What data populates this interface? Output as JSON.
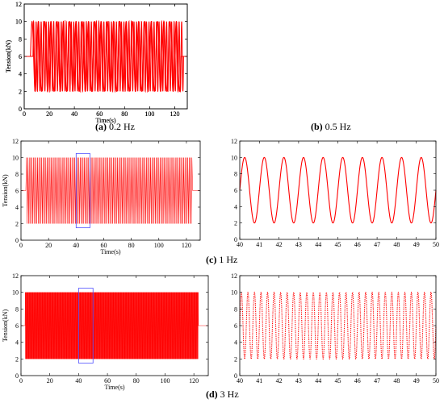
{
  "captions": {
    "a": {
      "letter": "(a)",
      "text": " 0.2 Hz"
    },
    "b": {
      "letter": "(b)",
      "text": " 0.5 Hz"
    },
    "c": {
      "letter": "(c)",
      "text": " 1 Hz"
    },
    "d": {
      "letter": "(d)",
      "text": " 3 Hz"
    }
  },
  "colors": {
    "signal": "#ff0000",
    "box": "#5050ff",
    "axis": "#000000"
  },
  "chart_data": [
    {
      "id": "a",
      "type": "line",
      "xlabel": "Time(s)",
      "ylabel": "Tension(kN)",
      "xlim": [
        0,
        130
      ],
      "ylim": [
        0,
        12
      ],
      "xticks": [
        0,
        20,
        40,
        60,
        80,
        100,
        120
      ],
      "yticks": [
        0,
        2,
        4,
        6,
        8,
        10,
        12
      ],
      "series": [
        {
          "freq_hz": 0.2,
          "start_s": 5,
          "end_s": 125,
          "baseline_kN": 6,
          "max_kN": 10,
          "min_kN": 2
        }
      ]
    },
    {
      "id": "b",
      "type": "line",
      "xlabel": "Time(s)",
      "ylabel": "Tension(kN)",
      "xlim": [
        0,
        130
      ],
      "ylim": [
        0,
        12
      ],
      "xticks": [
        0,
        20,
        40,
        60,
        80,
        100,
        120
      ],
      "yticks": [
        0,
        2,
        4,
        6,
        8,
        10,
        12
      ],
      "series": [
        {
          "freq_hz": 0.5,
          "start_s": 7,
          "end_s": 127,
          "baseline_kN": 6,
          "max_kN": 10,
          "min_kN": 2
        }
      ]
    },
    {
      "id": "c1",
      "type": "line",
      "xlabel": "Time(s)",
      "ylabel": "Tension(kN)",
      "xlim": [
        0,
        130
      ],
      "ylim": [
        0,
        12
      ],
      "xticks": [
        0,
        20,
        40,
        60,
        80,
        100,
        120
      ],
      "yticks": [
        0,
        2,
        4,
        6,
        8,
        10,
        12
      ],
      "highlight": {
        "x": [
          40,
          50
        ],
        "y": [
          1.5,
          10.5
        ]
      },
      "series": [
        {
          "freq_hz": 1,
          "start_s": 4,
          "end_s": 124,
          "baseline_kN": 6,
          "max_kN": 10,
          "min_kN": 2
        }
      ]
    },
    {
      "id": "c2",
      "type": "line",
      "xlim": [
        40,
        50
      ],
      "ylim": [
        0,
        12
      ],
      "xticks": [
        40,
        41,
        42,
        43,
        44,
        45,
        46,
        47,
        48,
        49,
        50
      ],
      "yticks": [
        0,
        2,
        4,
        6,
        8,
        10,
        12
      ],
      "series": [
        {
          "freq_hz": 1,
          "start_s": 4,
          "end_s": 124,
          "baseline_kN": 6,
          "max_kN": 10,
          "min_kN": 2
        }
      ]
    },
    {
      "id": "d1",
      "type": "line",
      "xlabel": "Time(s)",
      "ylabel": "Tension(kN)",
      "xlim": [
        0,
        130
      ],
      "ylim": [
        0,
        12
      ],
      "xticks": [
        0,
        20,
        40,
        60,
        80,
        100,
        120
      ],
      "yticks": [
        0,
        2,
        4,
        6,
        8,
        10,
        12
      ],
      "highlight": {
        "x": [
          40,
          50
        ],
        "y": [
          1.5,
          10.5
        ]
      },
      "series": [
        {
          "freq_hz": 3,
          "start_s": 3,
          "end_s": 123,
          "baseline_kN": 6,
          "max_kN": 10,
          "min_kN": 2
        }
      ]
    },
    {
      "id": "d2",
      "type": "line",
      "xlim": [
        40,
        50
      ],
      "ylim": [
        0,
        12
      ],
      "xticks": [
        40,
        41,
        42,
        43,
        44,
        45,
        46,
        47,
        48,
        49,
        50
      ],
      "yticks": [
        0,
        2,
        4,
        6,
        8,
        10,
        12
      ],
      "series": [
        {
          "freq_hz": 3,
          "start_s": 3,
          "end_s": 123,
          "baseline_kN": 6,
          "max_kN": 10,
          "min_kN": 2,
          "style": "dotted"
        }
      ]
    }
  ]
}
